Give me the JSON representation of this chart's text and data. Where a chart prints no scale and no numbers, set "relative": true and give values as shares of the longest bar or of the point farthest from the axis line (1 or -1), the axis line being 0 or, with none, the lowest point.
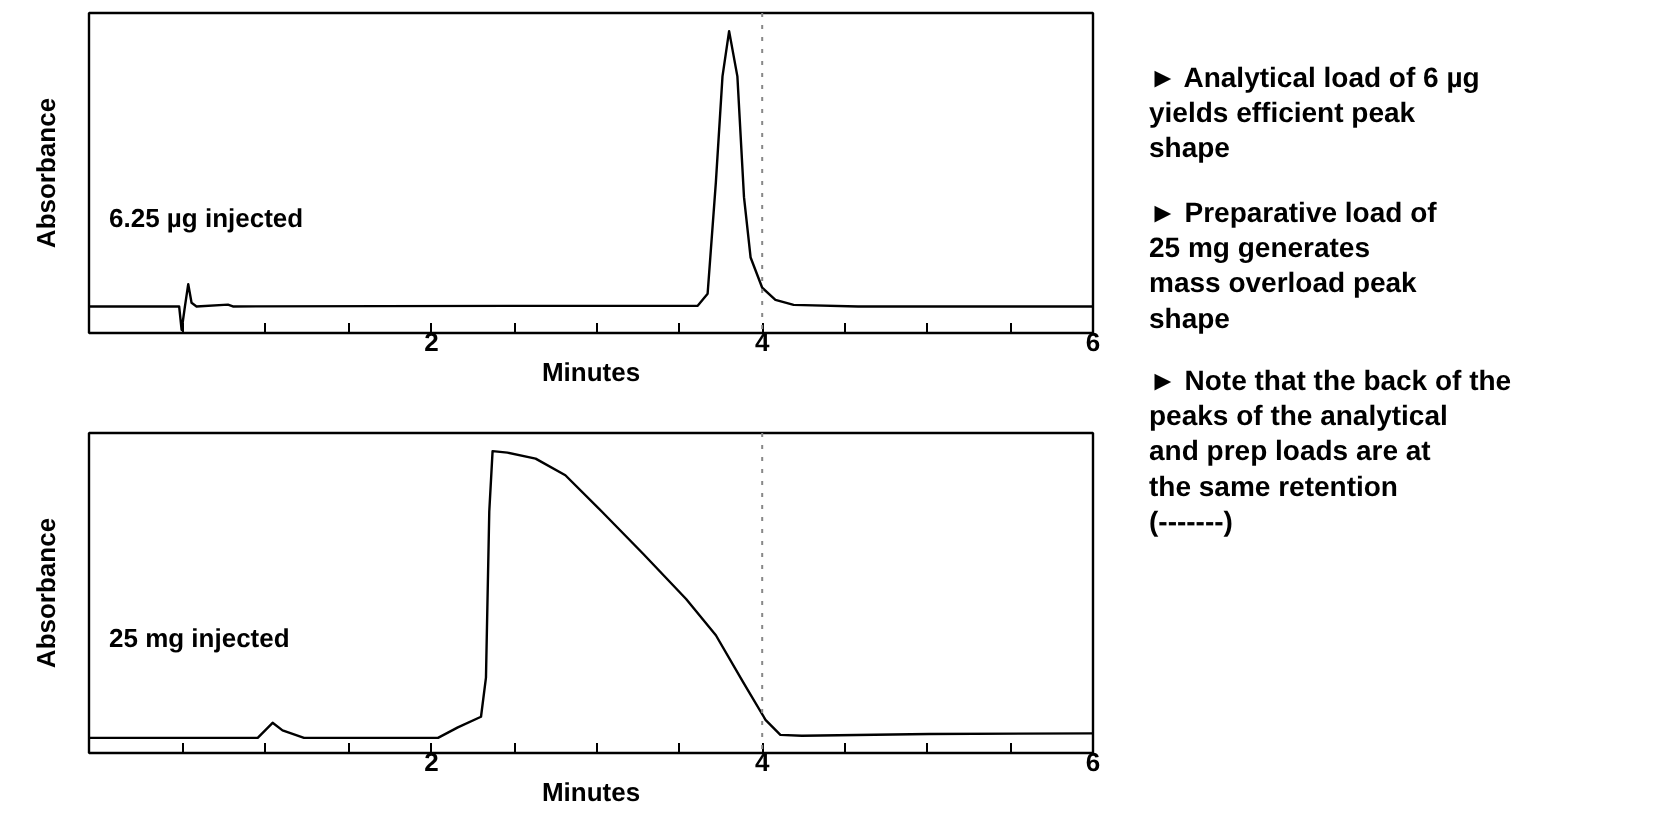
{
  "chart_data": [
    {
      "type": "line",
      "relative": true,
      "xlabel": "Minutes",
      "ylabel": "Absorbance",
      "annotations": [
        "6.25 µg injected"
      ],
      "xlim": [
        -0.07,
        6
      ],
      "xticks": [
        {
          "value": 0.5,
          "label": null
        },
        {
          "value": 1,
          "label": null
        },
        {
          "value": 1.5,
          "label": null
        },
        2,
        {
          "value": 2.5,
          "label": null
        },
        {
          "value": 3,
          "label": null
        },
        {
          "value": 3.5,
          "label": null
        },
        4,
        {
          "value": 4.5,
          "label": null
        },
        {
          "value": 5,
          "label": null
        },
        {
          "value": 5.5,
          "label": null
        },
        6
      ],
      "grid": false,
      "marker": "none",
      "line_style": "solid",
      "ref_lines": [
        {
          "axis": "x",
          "value": 4.0,
          "label": null,
          "color": "#888888",
          "line_style": "dotted"
        }
      ],
      "series": [
        {
          "color": "#000000",
          "x": [
            -0.07,
            0.475,
            0.49,
            0.51,
            0.53,
            0.55,
            0.58,
            0.77,
            0.8,
            2.72,
            3.61,
            3.67,
            3.72,
            3.76,
            3.8,
            3.85,
            3.89,
            3.93,
            4.0,
            4.08,
            4.19,
            4.58,
            6.0
          ],
          "values": [
            0.088,
            0.088,
            0.01,
            0.088,
            0.162,
            0.1,
            0.088,
            0.094,
            0.088,
            0.09,
            0.09,
            0.13,
            0.5,
            0.85,
            1.0,
            0.85,
            0.45,
            0.25,
            0.15,
            0.11,
            0.093,
            0.088,
            0.088
          ]
        }
      ]
    },
    {
      "type": "line",
      "relative": true,
      "xlabel": "Minutes",
      "ylabel": "Absorbance",
      "annotations": [
        "25 mg injected"
      ],
      "xlim": [
        -0.07,
        6
      ],
      "xticks": [
        {
          "value": 0.5,
          "label": null
        },
        {
          "value": 1,
          "label": null
        },
        {
          "value": 1.5,
          "label": null
        },
        2,
        {
          "value": 2.5,
          "label": null
        },
        {
          "value": 3,
          "label": null
        },
        {
          "value": 3.5,
          "label": null
        },
        4,
        {
          "value": 4.5,
          "label": null
        },
        {
          "value": 5,
          "label": null
        },
        {
          "value": 5.5,
          "label": null
        },
        6
      ],
      "grid": false,
      "marker": "none",
      "line_style": "solid",
      "ref_lines": [
        {
          "axis": "x",
          "value": 4.0,
          "label": null,
          "color": "#888888",
          "line_style": "dotted"
        }
      ],
      "series": [
        {
          "color": "#000000",
          "x": [
            -0.07,
            0.95,
            1.04,
            1.1,
            1.23,
            2.04,
            2.16,
            2.3,
            2.33,
            2.35,
            2.37,
            2.46,
            2.63,
            2.81,
            3.03,
            3.28,
            3.54,
            3.72,
            3.89,
            4.02,
            4.11,
            4.24,
            5.01,
            6.0
          ],
          "values": [
            0.05,
            0.05,
            0.1,
            0.075,
            0.05,
            0.05,
            0.085,
            0.12,
            0.25,
            0.8,
            1.0,
            0.995,
            0.975,
            0.92,
            0.8,
            0.66,
            0.51,
            0.39,
            0.23,
            0.11,
            0.06,
            0.057,
            0.063,
            0.065
          ]
        }
      ]
    },
    {
      "type": "other",
      "annotations": [
        "► Analytical load of 6 µg\nyields efficient peak\nshape",
        "► Preparative load of\n25 mg generates\nmass overload peak\nshape",
        "► Note that the back of the\npeaks of the analytical\nand prep loads are at\nthe same retention\n(-------)"
      ]
    }
  ]
}
